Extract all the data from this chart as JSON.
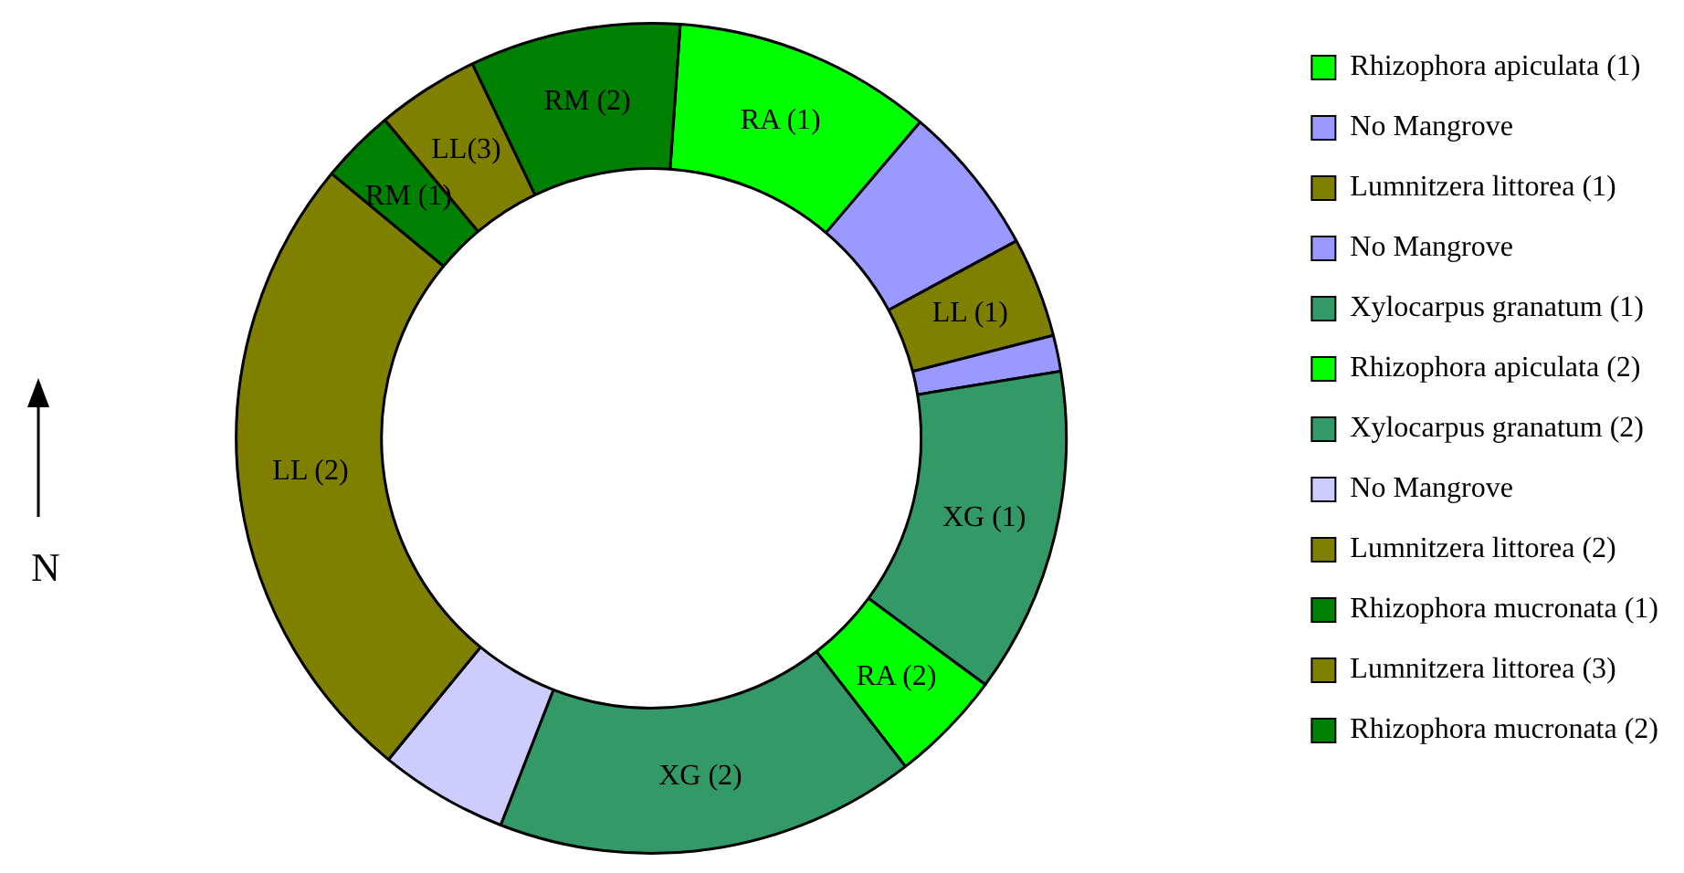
{
  "chart_data": {
    "type": "donut",
    "categories": [
      "Rhizophora apiculata (1)",
      "No Mangrove",
      "Lumnitzera littorea (1)",
      "No Mangrove",
      "Xylocarpus granatum (1)",
      "Rhizophora apiculata (2)",
      "Xylocarpus granatum (2)",
      "No Mangrove",
      "Lumnitzera littorea (2)",
      "Rhizophora mucronata (1)",
      "Lumnitzera littorea (3)",
      "Rhizophora mucronata (2)"
    ],
    "values": [
      10.1,
      5.9,
      3.9,
      1.4,
      12.7,
      4.4,
      16.4,
      5.0,
      25.1,
      2.9,
      4.0,
      8.2
    ],
    "colors": [
      "#00ff00",
      "#9999ff",
      "#808000",
      "#9999ff",
      "#339966",
      "#00ff00",
      "#339966",
      "#ccccff",
      "#808000",
      "#008000",
      "#808000",
      "#008000"
    ],
    "legend": "right",
    "annotations": [
      "N",
      {
        "text": "RA (1)",
        "x": "Rhizophora apiculata (1)"
      },
      {
        "text": "LL (1)",
        "x": "Lumnitzera littorea (1)"
      },
      {
        "text": "XG (1)",
        "x": "Xylocarpus granatum (1)"
      },
      {
        "text": "RA (2)",
        "x": "Rhizophora apiculata (2)"
      },
      {
        "text": "XG (2)",
        "x": "Xylocarpus granatum (2)"
      },
      {
        "text": "LL (2)",
        "x": "Lumnitzera littorea (2)"
      },
      {
        "text": "RM (1)",
        "x": "Rhizophora mucronata (1)"
      },
      {
        "text": "LL(3)",
        "x": "Lumnitzera littorea (3)"
      },
      {
        "text": "RM (2)",
        "x": "Rhizophora mucronata (2)"
      }
    ]
  }
}
